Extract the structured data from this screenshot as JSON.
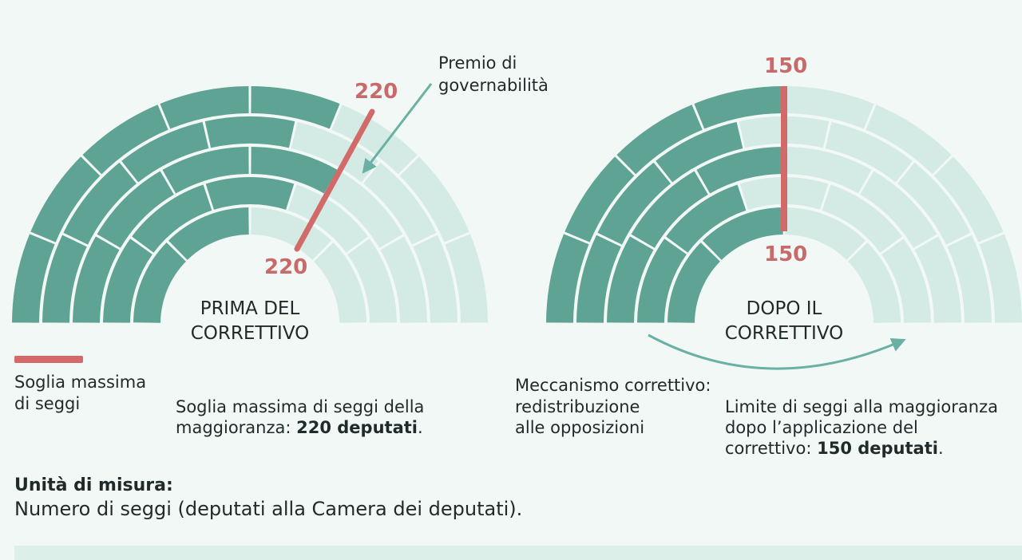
{
  "colors": {
    "majority": "#5fa394",
    "opposition": "#d3ebe4",
    "threshold": "#d36a6a",
    "arrow": "#6ab0a3",
    "background": "#f2f8f6"
  },
  "left_chart": {
    "value_top": "220",
    "value_bottom": "220",
    "label_line1": "PRIMA DEL",
    "label_line2": "CORRETTIVO",
    "majority_share": 0.6,
    "callout": {
      "line1": "Premio di",
      "line2": "governabilità"
    }
  },
  "right_chart": {
    "value_top": "150",
    "value_bottom": "150",
    "label_line1": "DOPO IL",
    "label_line2": "CORRETTIVO",
    "majority_share": 0.5
  },
  "legend": {
    "line1": "Soglia massima",
    "line2": "di seggi"
  },
  "notes": {
    "left_line1": "Soglia massima di seggi della",
    "left_line2_prefix": "maggioranza: ",
    "left_line2_bold": "220 deputati",
    "left_line2_suffix": ".",
    "mechanism_line1": "Meccanismo correttivo:",
    "mechanism_line2": "redistribuzione",
    "mechanism_line3": "alle opposizioni",
    "right_line1": "Limite di seggi alla maggioranza",
    "right_line2": "dopo l’applicazione del",
    "right_line3_prefix": "correttivo: ",
    "right_line3_bold": "150 deputati",
    "right_line3_suffix": "."
  },
  "unit": {
    "title": "Unità di misura:",
    "description": "Numero di seggi (deputati alla Camera dei deputati)."
  }
}
